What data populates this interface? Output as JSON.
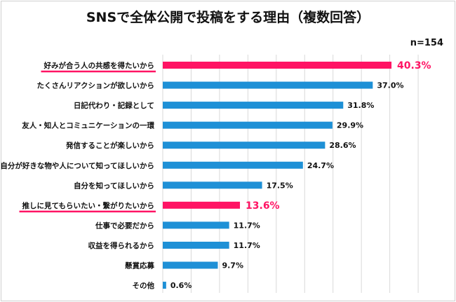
{
  "chart_data": {
    "type": "bar",
    "orientation": "horizontal",
    "title": "SNSで全体公開で投稿をする理由（複数回答）",
    "note": "n=154",
    "unit": "%",
    "xlim": [
      0,
      45
    ],
    "grid": true,
    "categories": [
      "好みが合う人の共感を得たいから",
      "たくさんリアクションが欲しいから",
      "日記代わり・記録として",
      "友人・知人とコミュニケーションの一環",
      "発信することが楽しいから",
      "自分が好きな物や人について知ってほしいから",
      "自分を知ってほしいから",
      "推しに見てもらいたい・繋がりたいから",
      "仕事で必要だから",
      "収益を得られるから",
      "懸賞応募",
      "その他"
    ],
    "values": [
      40.3,
      37.0,
      31.8,
      29.9,
      28.6,
      24.7,
      17.5,
      13.6,
      11.7,
      11.7,
      9.7,
      0.6
    ],
    "value_labels": [
      "40.3%",
      "37.0%",
      "31.8%",
      "29.9%",
      "28.6%",
      "24.7%",
      "17.5%",
      "13.6%",
      "11.7%",
      "11.7%",
      "9.7%",
      "0.6%"
    ],
    "highlighted": [
      0,
      7
    ],
    "colors": {
      "default": "#1e90d6",
      "highlight": "#ff1464",
      "grid": "#d9d9d9"
    }
  }
}
